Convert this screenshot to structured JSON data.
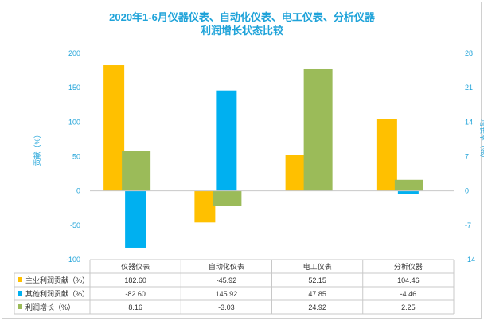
{
  "chart_data": {
    "type": "bar",
    "title_line1": "2020年1-6月仪器仪表、自动化仪表、电工仪表、分析仪器",
    "title_line2": "利润增长状态比较",
    "categories": [
      "仪器仪表",
      "自动化仪表",
      "电工仪表",
      "分析仪器"
    ],
    "ylabel_left": "贡献（%）",
    "ylabel_right": "增长率（%）",
    "ylim_left": [
      -100,
      200
    ],
    "ylim_right": [
      -14,
      28
    ],
    "yticks_left": [
      "200",
      "150",
      "100",
      "50",
      "0",
      "-50",
      "-100"
    ],
    "yticks_right": [
      "28",
      "21",
      "14",
      "7",
      "0",
      "-7",
      "-14"
    ],
    "series": [
      {
        "name": "主业利润贡献（%）",
        "axis": "left",
        "color": "#ffc000",
        "values": [
          182.6,
          -45.92,
          52.15,
          104.46
        ],
        "labels": [
          "182.60",
          "-45.92",
          "52.15",
          "104.46"
        ]
      },
      {
        "name": "其他利润贡献（%）",
        "axis": "left",
        "color": "#00b0f0",
        "values": [
          -82.6,
          145.92,
          47.85,
          -4.46
        ],
        "labels": [
          "-82.60",
          "145.92",
          "47.85",
          "-4.46"
        ]
      },
      {
        "name": "利润增长（%）",
        "axis": "right",
        "color": "#9bbb59",
        "values": [
          8.16,
          -3.03,
          24.92,
          2.25
        ],
        "labels": [
          "8.16",
          "-3.03",
          "24.92",
          "2.25"
        ]
      }
    ],
    "grid": false,
    "legend": "data-table"
  }
}
